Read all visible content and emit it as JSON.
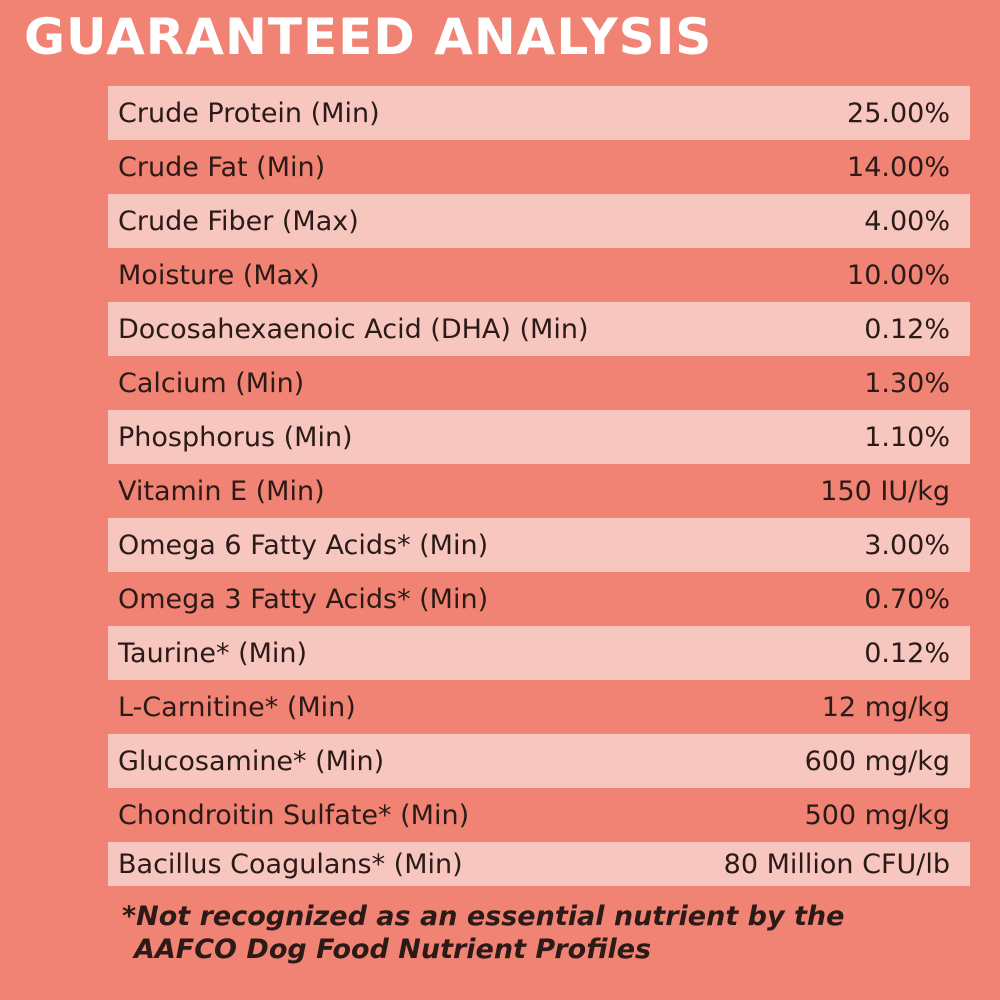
{
  "title": "GUARANTEED ANALYSIS",
  "rows": [
    {
      "label": "Crude Protein (Min)",
      "value": "25.00%"
    },
    {
      "label": "Crude Fat (Min)",
      "value": "14.00%"
    },
    {
      "label": "Crude Fiber (Max)",
      "value": "4.00%"
    },
    {
      "label": "Moisture (Max)",
      "value": "10.00%"
    },
    {
      "label": "Docosahexaenoic Acid (DHA) (Min)",
      "value": "0.12%"
    },
    {
      "label": "Calcium (Min)",
      "value": "1.30%"
    },
    {
      "label": "Phosphorus (Min)",
      "value": "1.10%"
    },
    {
      "label": "Vitamin E (Min)",
      "value": "150 IU/kg"
    },
    {
      "label": "Omega 6 Fatty Acids* (Min)",
      "value": "3.00%"
    },
    {
      "label": "Omega 3 Fatty Acids* (Min)",
      "value": "0.70%"
    },
    {
      "label": "Taurine* (Min)",
      "value": "0.12%"
    },
    {
      "label": "L-Carnitine* (Min)",
      "value": "12 mg/kg"
    },
    {
      "label": "Glucosamine* (Min)",
      "value": "600 mg/kg"
    },
    {
      "label": "Chondroitin Sulfate* (Min)",
      "value": "500 mg/kg"
    },
    {
      "label": "Bacillus Coagulans* (Min)",
      "value": "80 Million CFU/lb"
    }
  ],
  "footnote": {
    "line1": "*Not recognized as an essential nutrient by the",
    "line2": "AAFCO Dog Food Nutrient Profiles"
  },
  "colors": {
    "background": "#f08373",
    "stripe": "#f7c7bf",
    "text": "#2b1a17",
    "title": "#ffffff"
  }
}
